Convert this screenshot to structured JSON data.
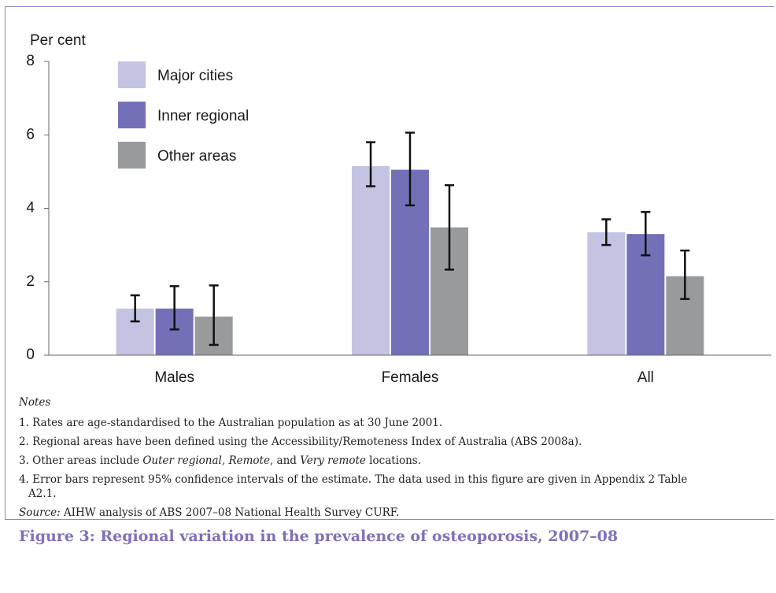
{
  "chart_data": {
    "type": "bar",
    "y_label": "Per cent",
    "categories": [
      "Males",
      "Females",
      "All"
    ],
    "series": [
      {
        "name": "Major cities",
        "color": "#c5c3e2",
        "values": [
          1.27,
          5.15,
          3.35
        ],
        "lower": [
          0.92,
          4.6,
          3.0
        ],
        "upper": [
          1.63,
          5.8,
          3.7
        ]
      },
      {
        "name": "Inner regional",
        "color": "#7470b8",
        "values": [
          1.27,
          5.05,
          3.3
        ],
        "lower": [
          0.7,
          4.08,
          2.72
        ],
        "upper": [
          1.88,
          6.06,
          3.9
        ]
      },
      {
        "name": "Other areas",
        "color": "#999a9c",
        "values": [
          1.05,
          3.48,
          2.15
        ],
        "lower": [
          0.28,
          2.33,
          1.53
        ],
        "upper": [
          1.9,
          4.63,
          2.85
        ]
      }
    ],
    "ylim": [
      0,
      8
    ],
    "yticks": [
      0,
      2,
      4,
      6,
      8
    ],
    "grid": false,
    "legend": "upper-left"
  },
  "notes": {
    "heading": "Notes",
    "items": [
      [
        "1. Rates are age-standardised to the Australian population as at 30 June 2001."
      ],
      [
        "2. Regional areas have been defined using the Accessibility/Remoteness Index of Australia (ABS 2008a)."
      ],
      [
        "3. Other areas include ",
        "Outer regional, Remote",
        ", and ",
        "Very remote",
        " locations."
      ],
      [
        "4. Error bars represent 95% confidence intervals of the estimate. The data used in this figure are given in Appendix 2 Table A2.1."
      ]
    ],
    "source": [
      "Source:",
      " AIHW analysis of ABS 2007–08 National Health Survey CURF."
    ]
  },
  "caption": "Figure 3: Regional variation in the prevalence of osteoporosis, 2007–08"
}
